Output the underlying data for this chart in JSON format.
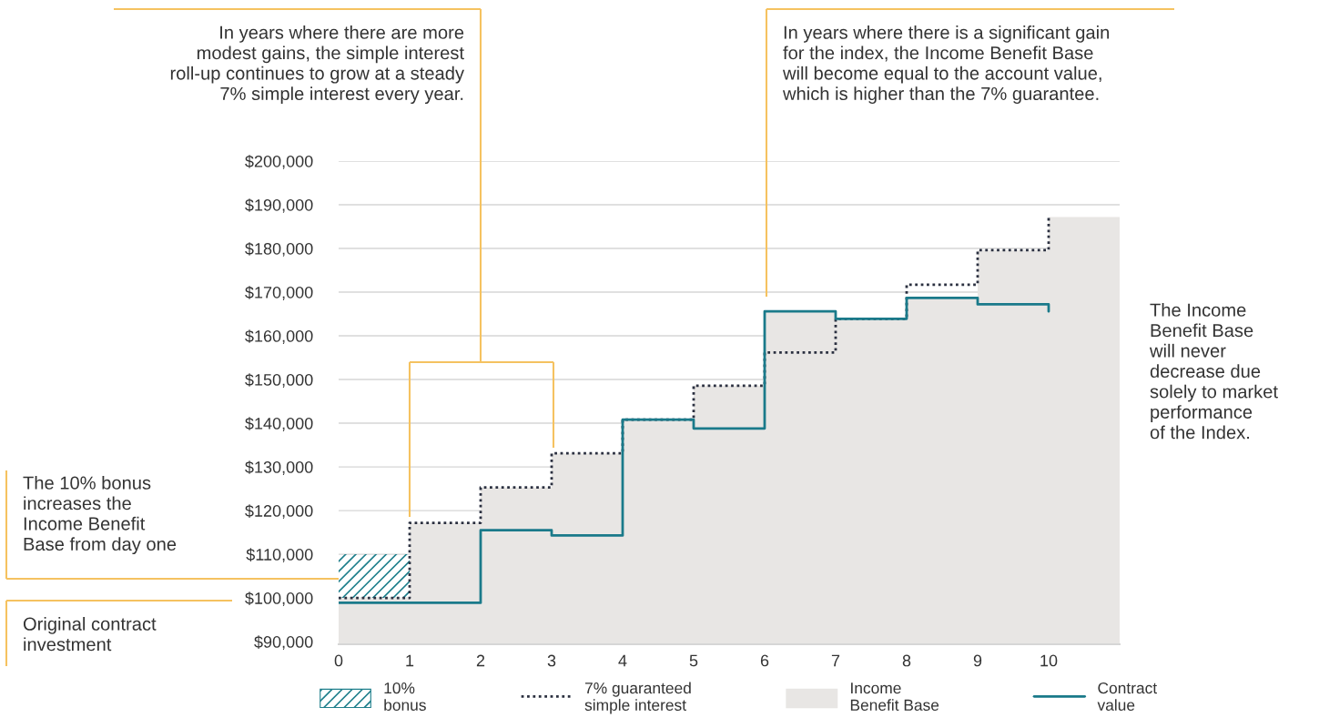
{
  "chart_data": {
    "type": "step",
    "annotations": [
      "In years where there are more\nmodest gains, the simple interest\nroll-up continues to grow at a steady\n7% simple interest every year.",
      "In years where there is a significant gain\nfor the index, the Income Benefit Base\nwill become equal to the account value,\nwhich is higher than the 7% guarantee.",
      "The Income\nBenefit Base\nwill never\ndecrease due\nsolely to market\nperformance\nof the Index.",
      "The 10% bonus\nincreases the\nIncome Benefit\nBase from day one",
      "Original contract\ninvestment"
    ],
    "series": [
      {
        "name": "10%\nbonus",
        "type": "bar",
        "color": "#1f7f8c",
        "x": [
          0.5
        ],
        "base": [
          100000
        ],
        "values": [
          10000
        ]
      },
      {
        "name": "7% guaranteed\nsimple interest",
        "color": "#2b3040",
        "line_style": "dotted",
        "x": [
          0,
          1,
          2,
          3,
          4,
          5,
          6,
          7,
          8,
          9,
          10,
          10
        ],
        "values": [
          100000,
          117200,
          125300,
          133100,
          140800,
          148600,
          156200,
          163900,
          171700,
          179600,
          179600,
          187500
        ]
      },
      {
        "name": "Income\nBenefit Base",
        "type": "area",
        "color": "#e8e6e4",
        "x": [
          0,
          1,
          2,
          3,
          4,
          5,
          6,
          7,
          8,
          9,
          10,
          11
        ],
        "values": [
          100000,
          117200,
          125300,
          133100,
          140800,
          148600,
          165600,
          163900,
          168700,
          179600,
          187200,
          187200
        ]
      },
      {
        "name": "Contract\nvalue",
        "color": "#1a7a8a",
        "line_style": "solid",
        "x": [
          0,
          1,
          2,
          3,
          4,
          5,
          6,
          7,
          8,
          9,
          10,
          10
        ],
        "values": [
          98900,
          98900,
          115500,
          114300,
          140800,
          138800,
          165600,
          163900,
          168700,
          167200,
          167200,
          165600
        ]
      }
    ],
    "xlim": [
      0,
      11
    ],
    "xticks": [
      0,
      1,
      2,
      3,
      4,
      5,
      6,
      7,
      8,
      9,
      10
    ],
    "ylim": [
      89400,
      200000
    ],
    "yticks": [
      {
        "value": 90000,
        "label": "$90,000"
      },
      {
        "value": 100000,
        "label": "$100,000"
      },
      {
        "value": 110000,
        "label": "$110,000"
      },
      {
        "value": 120000,
        "label": "$120,000"
      },
      {
        "value": 130000,
        "label": "$130,000"
      },
      {
        "value": 140000,
        "label": "$140,000"
      },
      {
        "value": 150000,
        "label": "$150,000"
      },
      {
        "value": 160000,
        "label": "$160,000"
      },
      {
        "value": 170000,
        "label": "$170,000"
      },
      {
        "value": 180000,
        "label": "$180,000"
      },
      {
        "value": 190000,
        "label": "$190,000"
      },
      {
        "value": 200000,
        "label": "$200,000"
      }
    ],
    "grid": "y",
    "legend": "bottom"
  }
}
